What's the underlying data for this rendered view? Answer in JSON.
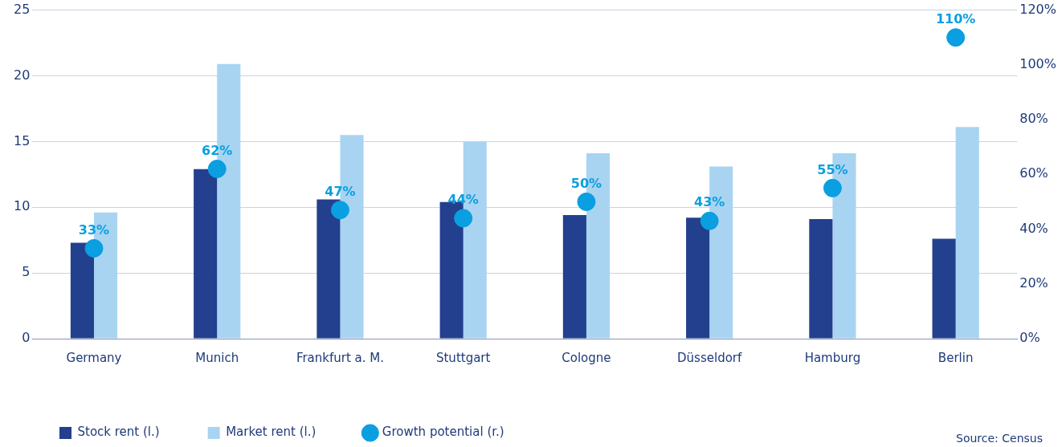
{
  "chart_data": {
    "type": "bar",
    "categories": [
      "Germany",
      "Munich",
      "Frankfurt a. M.",
      "Stuttgart",
      "Cologne",
      "Düsseldorf",
      "Hamburg",
      "Berlin"
    ],
    "series": [
      {
        "name": "Stock rent (l.)",
        "color": "#23408e",
        "values": [
          7.3,
          12.9,
          10.6,
          10.4,
          9.4,
          9.2,
          9.1,
          7.6
        ]
      },
      {
        "name": "Market rent (l.)",
        "color": "#a8d4f2",
        "values": [
          9.6,
          20.9,
          15.5,
          15.0,
          14.1,
          13.1,
          14.1,
          16.1
        ]
      },
      {
        "name": "Growth potential (r.)",
        "type": "scatter",
        "axis": "y2",
        "color": "#0a9fe0",
        "values": [
          33,
          62,
          47,
          44,
          50,
          43,
          55,
          110
        ],
        "value_labels": [
          "33%",
          "62%",
          "47%",
          "44%",
          "50%",
          "43%",
          "55%",
          "110%"
        ]
      }
    ],
    "ylim": [
      0,
      25
    ],
    "yticks": [
      0,
      5,
      10,
      15,
      20,
      25
    ],
    "y2lim": [
      0,
      120
    ],
    "y2ticks": [
      {
        "value": 0,
        "label": "0%"
      },
      {
        "value": 20,
        "label": "20%"
      },
      {
        "value": 40,
        "label": "40%"
      },
      {
        "value": 60,
        "label": "60%"
      },
      {
        "value": 80,
        "label": "80%"
      },
      {
        "value": 100,
        "label": "100%"
      },
      {
        "value": 120,
        "label": "120%"
      }
    ],
    "grid": "y",
    "legend": "bottom",
    "marker": "circle",
    "annotations": [
      "Source: Census"
    ]
  }
}
